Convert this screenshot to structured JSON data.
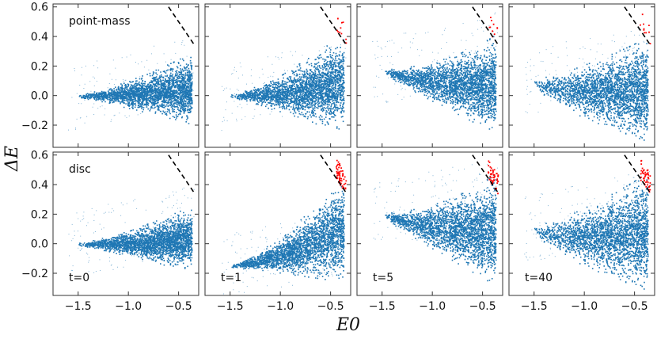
{
  "chart_data": {
    "type": "scatter",
    "layout": "2x4 grid",
    "shared_ylabel": "ΔE",
    "shared_xlabel": "E0",
    "ylim": [
      -0.35,
      0.62
    ],
    "yticks": [
      -0.2,
      0.0,
      0.2,
      0.4,
      0.6
    ],
    "ytick_labels": [
      "−0.2",
      "0.0",
      "0.2",
      "0.4",
      "0.6"
    ],
    "xticks": [
      -1.5,
      -1.0,
      -0.5
    ],
    "xtick_labels": [
      "−1.5",
      "−1.0",
      "−0.5"
    ],
    "grid": false,
    "colors": {
      "main": "#1f77b4",
      "escaper": "#ff0000",
      "threshold": "#000000"
    },
    "threshold_line": {
      "style": "dashed",
      "description": "ΔE = −E0",
      "points": [
        [
          -0.6,
          0.6
        ],
        [
          -0.35,
          0.35
        ]
      ]
    },
    "rows": [
      {
        "label": "point-mass",
        "label_panel": 0
      },
      {
        "label": "disc",
        "label_panel": 0
      }
    ],
    "panels": [
      {
        "row": 0,
        "col": 0,
        "time_label": "",
        "xlim": [
          -1.75,
          -0.3
        ],
        "shape": "wedge",
        "left_x": -1.5,
        "left_y": 0.0,
        "right_y_top": 0.25,
        "right_y_bottom": -0.15,
        "red_points": 0
      },
      {
        "row": 0,
        "col": 1,
        "time_label": "",
        "xlim": [
          -1.75,
          -0.3
        ],
        "shape": "wedge",
        "left_x": -1.5,
        "left_y": 0.0,
        "right_y_top": 0.37,
        "right_y_bottom": -0.2,
        "red_points": 12
      },
      {
        "row": 0,
        "col": 2,
        "time_label": "",
        "xlim": [
          -1.75,
          -0.3
        ],
        "shape": "bowtie",
        "left_x": -1.5,
        "left_y": 0.17,
        "right_y_top": 0.36,
        "right_y_bottom": -0.2,
        "red_points": 10
      },
      {
        "row": 0,
        "col": 3,
        "time_label": "",
        "xlim": [
          -1.75,
          -0.3
        ],
        "shape": "broad",
        "left_x": -1.5,
        "left_y": 0.1,
        "right_y_top": 0.34,
        "right_y_bottom": -0.25,
        "red_points": 10
      },
      {
        "row": 1,
        "col": 0,
        "time_label": "t=0",
        "xlim": [
          -1.75,
          -0.3
        ],
        "shape": "wedge",
        "left_x": -1.5,
        "left_y": 0.0,
        "right_y_top": 0.22,
        "right_y_bottom": -0.15,
        "red_points": 0
      },
      {
        "row": 1,
        "col": 1,
        "time_label": "t=1",
        "xlim": [
          -1.75,
          -0.3
        ],
        "shape": "wedge",
        "left_x": -1.5,
        "left_y": -0.15,
        "right_y_top": 0.4,
        "right_y_bottom": -0.2,
        "red_points": 60
      },
      {
        "row": 1,
        "col": 2,
        "time_label": "t=5",
        "xlim": [
          -1.75,
          -0.3
        ],
        "shape": "bowtie",
        "left_x": -1.5,
        "left_y": 0.2,
        "right_y_top": 0.42,
        "right_y_bottom": -0.22,
        "red_points": 50
      },
      {
        "row": 1,
        "col": 3,
        "time_label": "t=40",
        "xlim": [
          -1.75,
          -0.3
        ],
        "shape": "broad",
        "left_x": -1.5,
        "left_y": 0.11,
        "right_y_top": 0.42,
        "right_y_bottom": -0.25,
        "red_points": 50
      }
    ]
  }
}
